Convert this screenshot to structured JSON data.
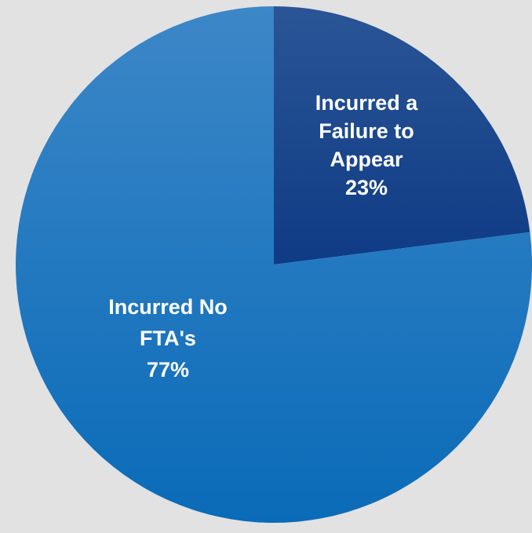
{
  "chart_data": {
    "type": "pie",
    "slices": [
      {
        "label_lines": [
          "Incurred a",
          "Failure to",
          "Appear"
        ],
        "pct_label": "23%",
        "value": 23,
        "color": "#0f3b85",
        "color_light": "#2a5596"
      },
      {
        "label_lines": [
          "Incurred No",
          "FTA's"
        ],
        "pct_label": "77%",
        "value": 77,
        "color": "#0a6bb8",
        "color_light": "#3c87c7"
      }
    ]
  },
  "colors": {
    "background": "#e2e2e2",
    "label_text": "#ffffff"
  }
}
